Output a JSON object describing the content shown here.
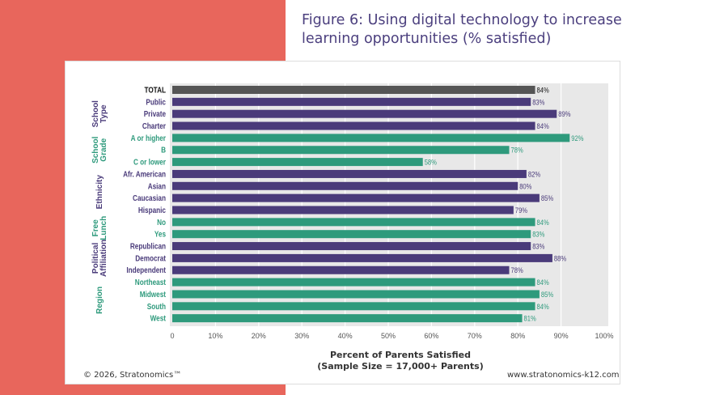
{
  "title": "Figure 6: Using digital technology to increase learning opportunities (% satisfied)",
  "footer": {
    "copyright": "© 2026, Stratonomics™",
    "url": "www.stratonomics-k12.com"
  },
  "colors": {
    "total": "#555555",
    "purple": "#4a3b7a",
    "green": "#2e9a7c",
    "plot_bg": "#e8e8e8",
    "coral": "#e8665c"
  },
  "chart_data": {
    "type": "bar",
    "orientation": "horizontal",
    "title": "Figure 6: Using digital technology to increase learning opportunities (% satisfied)",
    "xlabel": "Percent of Parents Satisfied",
    "xlabel_sub": "(Sample Size = 17,000+ Parents)",
    "xlim": [
      0,
      100
    ],
    "xticks": [
      "0",
      "10%",
      "20%",
      "30%",
      "40%",
      "50%",
      "60%",
      "70%",
      "80%",
      "90%",
      "100%"
    ],
    "grid": true,
    "categories": [
      "TOTAL",
      "Public",
      "Private",
      "Charter",
      "A or higher",
      "B",
      "C or lower",
      "Afr. American",
      "Asian",
      "Caucasian",
      "Hispanic",
      "No",
      "Yes",
      "Republican",
      "Democrat",
      "Independent",
      "Northeast",
      "Midwest",
      "South",
      "West"
    ],
    "values": [
      84,
      83,
      89,
      84,
      92,
      78,
      58,
      82,
      80,
      85,
      79,
      84,
      83,
      83,
      88,
      78,
      84,
      85,
      84,
      81
    ],
    "data_labels": [
      "84%",
      "83%",
      "89%",
      "84%",
      "92%",
      "78%",
      "58%",
      "82%",
      "80%",
      "85%",
      "79%",
      "84%",
      "83%",
      "83%",
      "88%",
      "78%",
      "84%",
      "85%",
      "84%",
      "81%"
    ],
    "bar_colors": [
      "total",
      "purple",
      "purple",
      "purple",
      "green",
      "green",
      "green",
      "purple",
      "purple",
      "purple",
      "purple",
      "green",
      "green",
      "purple",
      "purple",
      "purple",
      "green",
      "green",
      "green",
      "green"
    ],
    "groups": [
      {
        "label": "School Type",
        "lines": [
          "School",
          "Type"
        ],
        "start": 1,
        "end": 3,
        "color": "purple"
      },
      {
        "label": "School Grade",
        "lines": [
          "School",
          "Grade"
        ],
        "start": 4,
        "end": 6,
        "color": "green"
      },
      {
        "label": "Ethnicity",
        "lines": [
          "Ethnicity"
        ],
        "start": 7,
        "end": 10,
        "color": "purple"
      },
      {
        "label": "Free Lunch",
        "lines": [
          "Free",
          "Lunch"
        ],
        "start": 11,
        "end": 12,
        "color": "green"
      },
      {
        "label": "Political Affiliation",
        "lines": [
          "Political",
          "Affiliation"
        ],
        "start": 13,
        "end": 15,
        "color": "purple"
      },
      {
        "label": "Region",
        "lines": [
          "Region"
        ],
        "start": 16,
        "end": 19,
        "color": "green"
      }
    ]
  }
}
